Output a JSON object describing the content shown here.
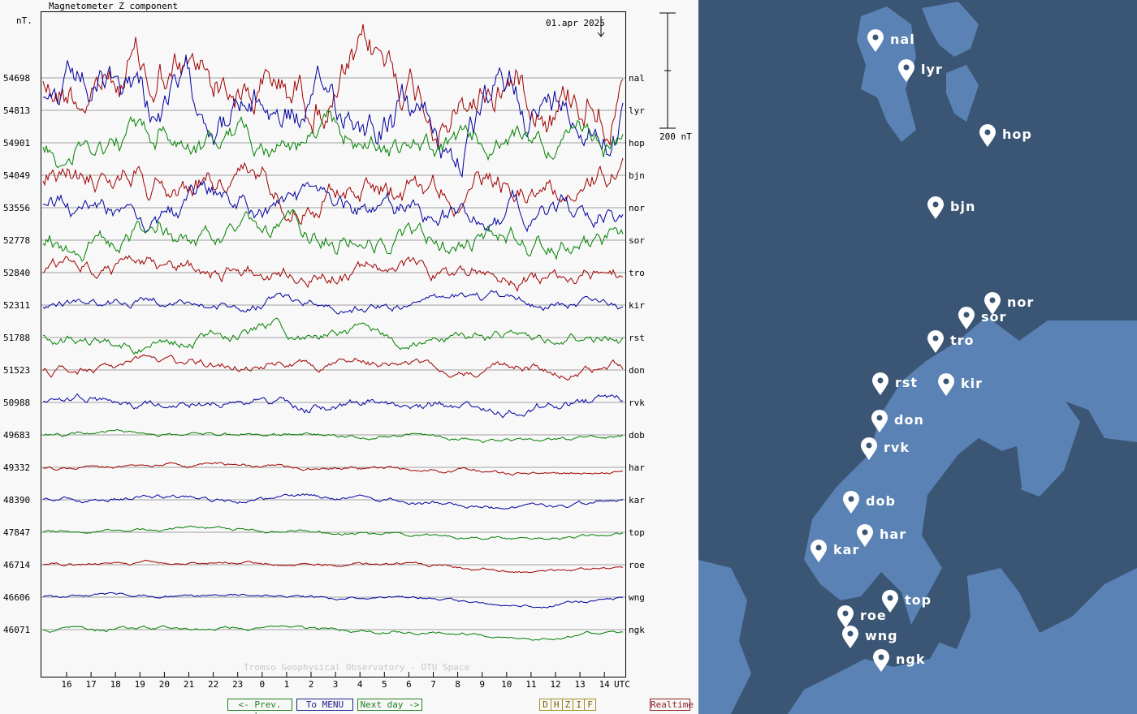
{
  "plot": {
    "title": "Magnetometer Z component",
    "unit_label": "nT.",
    "date_label": "01.apr 2025",
    "scale_label": "200 nT",
    "watermark": "Tromso Geophysical Observatory - DTU Space",
    "utc_label": "UTC"
  },
  "nav": {
    "prev": "<- Prev. day",
    "menu": "To MENU",
    "next": "Next day ->",
    "realtime": "Realtime"
  },
  "components": [
    "D",
    "H",
    "Z",
    "I",
    "F"
  ],
  "colors": {
    "red": "#a00000",
    "blue": "#0000a0",
    "green": "#008000",
    "map_land": "#5a82b4",
    "map_sea": "#3b5574"
  },
  "chart_data": {
    "type": "line",
    "title": "Magnetometer Z component",
    "ylabel": "nT.",
    "x_ticks": [
      "16",
      "17",
      "18",
      "19",
      "20",
      "21",
      "22",
      "23",
      "0",
      "1",
      "2",
      "3",
      "4",
      "5",
      "6",
      "7",
      "8",
      "9",
      "10",
      "11",
      "12",
      "13",
      "14"
    ],
    "grid": "horizontal baselines per station",
    "scale_bar_nT": 200,
    "series": [
      {
        "name": "nal",
        "baseline": 54698,
        "color": "red",
        "activity": 1.0
      },
      {
        "name": "lyr",
        "baseline": 54813,
        "color": "blue",
        "activity": 0.9
      },
      {
        "name": "hop",
        "baseline": 54901,
        "color": "green",
        "activity": 0.55
      },
      {
        "name": "bjn",
        "baseline": 54049,
        "color": "red",
        "activity": 0.6
      },
      {
        "name": "nor",
        "baseline": 53556,
        "color": "blue",
        "activity": 0.5
      },
      {
        "name": "sor",
        "baseline": 52778,
        "color": "green",
        "activity": 0.45
      },
      {
        "name": "tro",
        "baseline": 52840,
        "color": "red",
        "activity": 0.35
      },
      {
        "name": "kir",
        "baseline": 52311,
        "color": "blue",
        "activity": 0.2
      },
      {
        "name": "rst",
        "baseline": 51788,
        "color": "green",
        "activity": 0.25
      },
      {
        "name": "don",
        "baseline": 51523,
        "color": "red",
        "activity": 0.2
      },
      {
        "name": "rvk",
        "baseline": 50988,
        "color": "blue",
        "activity": 0.2
      },
      {
        "name": "dob",
        "baseline": 49683,
        "color": "green",
        "activity": 0.08
      },
      {
        "name": "har",
        "baseline": 49332,
        "color": "red",
        "activity": 0.08
      },
      {
        "name": "kar",
        "baseline": 48390,
        "color": "blue",
        "activity": 0.1
      },
      {
        "name": "top",
        "baseline": 47847,
        "color": "green",
        "activity": 0.07
      },
      {
        "name": "roe",
        "baseline": 46714,
        "color": "red",
        "activity": 0.07
      },
      {
        "name": "wng",
        "baseline": 46606,
        "color": "blue",
        "activity": 0.07
      },
      {
        "name": "ngk",
        "baseline": 46071,
        "color": "green",
        "activity": 0.07
      }
    ]
  },
  "map": {
    "stations": [
      "nal",
      "lyr",
      "hop",
      "bjn",
      "nor",
      "sor",
      "tro",
      "rst",
      "kir",
      "don",
      "rvk",
      "dob",
      "har",
      "kar",
      "top",
      "roe",
      "wng",
      "ngk"
    ]
  }
}
